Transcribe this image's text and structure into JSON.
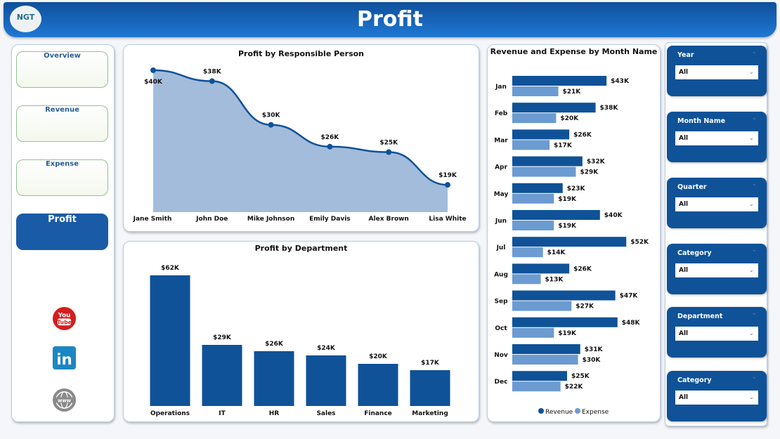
{
  "header": {
    "title": "Profit",
    "logo_text": "NGT"
  },
  "nav": {
    "items": [
      {
        "label": "Overview",
        "active": false
      },
      {
        "label": "Revenue",
        "active": false
      },
      {
        "label": "Expense",
        "active": false
      },
      {
        "label": "Profit",
        "active": true
      }
    ],
    "social": [
      "youtube-icon",
      "linkedin-icon",
      "globe-icon"
    ]
  },
  "colors": {
    "primary": "#0f5298",
    "accent_light": "#6b9bd1",
    "area_fill": "#a3bcdb",
    "header": "#1e78d4"
  },
  "chart_data": [
    {
      "type": "area",
      "title": "Profit by Responsible Person",
      "categories": [
        "Jane Smith",
        "John Doe",
        "Mike Johnson",
        "Emily Davis",
        "Alex Brown",
        "Lisa White"
      ],
      "values": [
        40,
        38,
        30,
        26,
        25,
        19
      ],
      "labels": [
        "$40K",
        "$38K",
        "$30K",
        "$26K",
        "$25K",
        "$19K"
      ],
      "unit": "K$",
      "ylim": [
        14,
        40
      ]
    },
    {
      "type": "bar",
      "title": "Profit by Department",
      "categories": [
        "Operations",
        "IT",
        "HR",
        "Sales",
        "Finance",
        "Marketing"
      ],
      "values": [
        62,
        29,
        26,
        24,
        20,
        17
      ],
      "labels": [
        "$62K",
        "$29K",
        "$26K",
        "$24K",
        "$20K",
        "$17K"
      ],
      "ylim": [
        0,
        62
      ]
    },
    {
      "type": "bar",
      "orientation": "horizontal",
      "title": "Revenue and Expense by Month Name",
      "categories": [
        "Jan",
        "Feb",
        "Mar",
        "Apr",
        "May",
        "Jun",
        "Jul",
        "Aug",
        "Sep",
        "Oct",
        "Nov",
        "Dec"
      ],
      "series": [
        {
          "name": "Revenue",
          "values": [
            43,
            38,
            26,
            32,
            23,
            40,
            52,
            26,
            47,
            48,
            31,
            25
          ],
          "labels": [
            "$43K",
            "$38K",
            "$26K",
            "$32K",
            "$23K",
            "$40K",
            "$52K",
            "$26K",
            "$47K",
            "$48K",
            "$31K",
            "$25K"
          ]
        },
        {
          "name": "Expense",
          "values": [
            21,
            20,
            17,
            29,
            19,
            19,
            14,
            13,
            27,
            19,
            30,
            22
          ],
          "labels": [
            "$21K",
            "$20K",
            "$17K",
            "$29K",
            "$19K",
            "$19K",
            "$14K",
            "$13K",
            "$27K",
            "$19K",
            "$30K",
            "$22K"
          ]
        }
      ],
      "legend": "bottom"
    }
  ],
  "slicers": [
    {
      "label": "Year",
      "value": "All"
    },
    {
      "label": "Month Name",
      "value": "All"
    },
    {
      "label": "Quarter",
      "value": "All"
    },
    {
      "label": "Category",
      "value": "All"
    },
    {
      "label": "Department",
      "value": "All"
    },
    {
      "label": "Category",
      "value": "All"
    }
  ]
}
